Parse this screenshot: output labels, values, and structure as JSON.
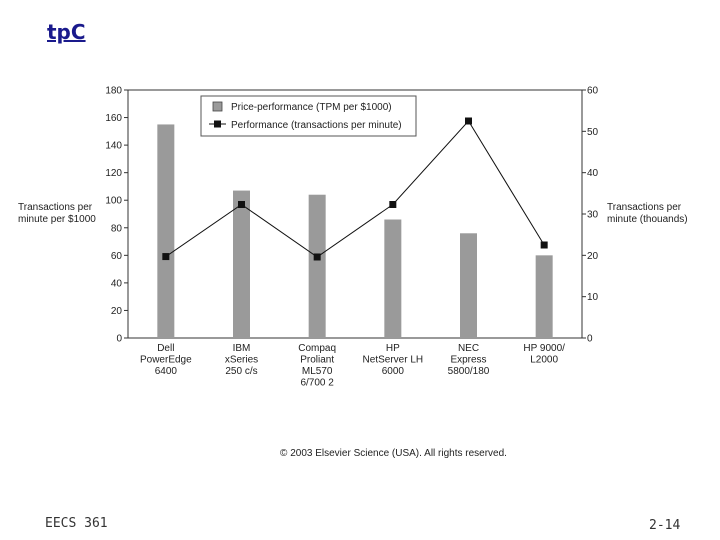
{
  "slide": {
    "title": "tpC",
    "footer_left": "EECS 361",
    "footer_right": "2-14"
  },
  "chart_data": {
    "type": "bar",
    "categories": [
      [
        "Dell",
        "PowerEdge",
        "6400"
      ],
      [
        "IBM",
        "xSeries",
        "250 c/s"
      ],
      [
        "Compaq",
        "Proliant",
        "ML570",
        "6/700 2"
      ],
      [
        "HP",
        "NetServer LH",
        "6000"
      ],
      [
        "NEC",
        "Express",
        "5800/180"
      ],
      [
        "HP 9000/",
        "L2000"
      ]
    ],
    "series": [
      {
        "name": "Price-performance (TPM per $1000)",
        "kind": "bar",
        "axis": "left",
        "values": [
          155,
          107,
          104,
          86,
          76,
          60
        ],
        "color": "#9a9a9a"
      },
      {
        "name": "Performance (transactions per minute)",
        "kind": "line",
        "axis": "right",
        "values": [
          19.7,
          32.3,
          19.6,
          32.3,
          52.5,
          22.5
        ],
        "color": "#111111"
      }
    ],
    "left_axis": {
      "label": [
        "Transactions per",
        "minute per $1000"
      ],
      "ylim": [
        0,
        180
      ],
      "ticks": [
        0,
        20,
        40,
        60,
        80,
        100,
        120,
        140,
        160,
        180
      ]
    },
    "right_axis": {
      "label": [
        "Transactions per",
        "minute (thouands)"
      ],
      "ylim": [
        0,
        60
      ],
      "ticks": [
        0,
        10,
        20,
        30,
        40,
        50,
        60
      ]
    },
    "legend_position": "top-left",
    "copyright": "© 2003 Elsevier Science (USA). All rights reserved."
  }
}
